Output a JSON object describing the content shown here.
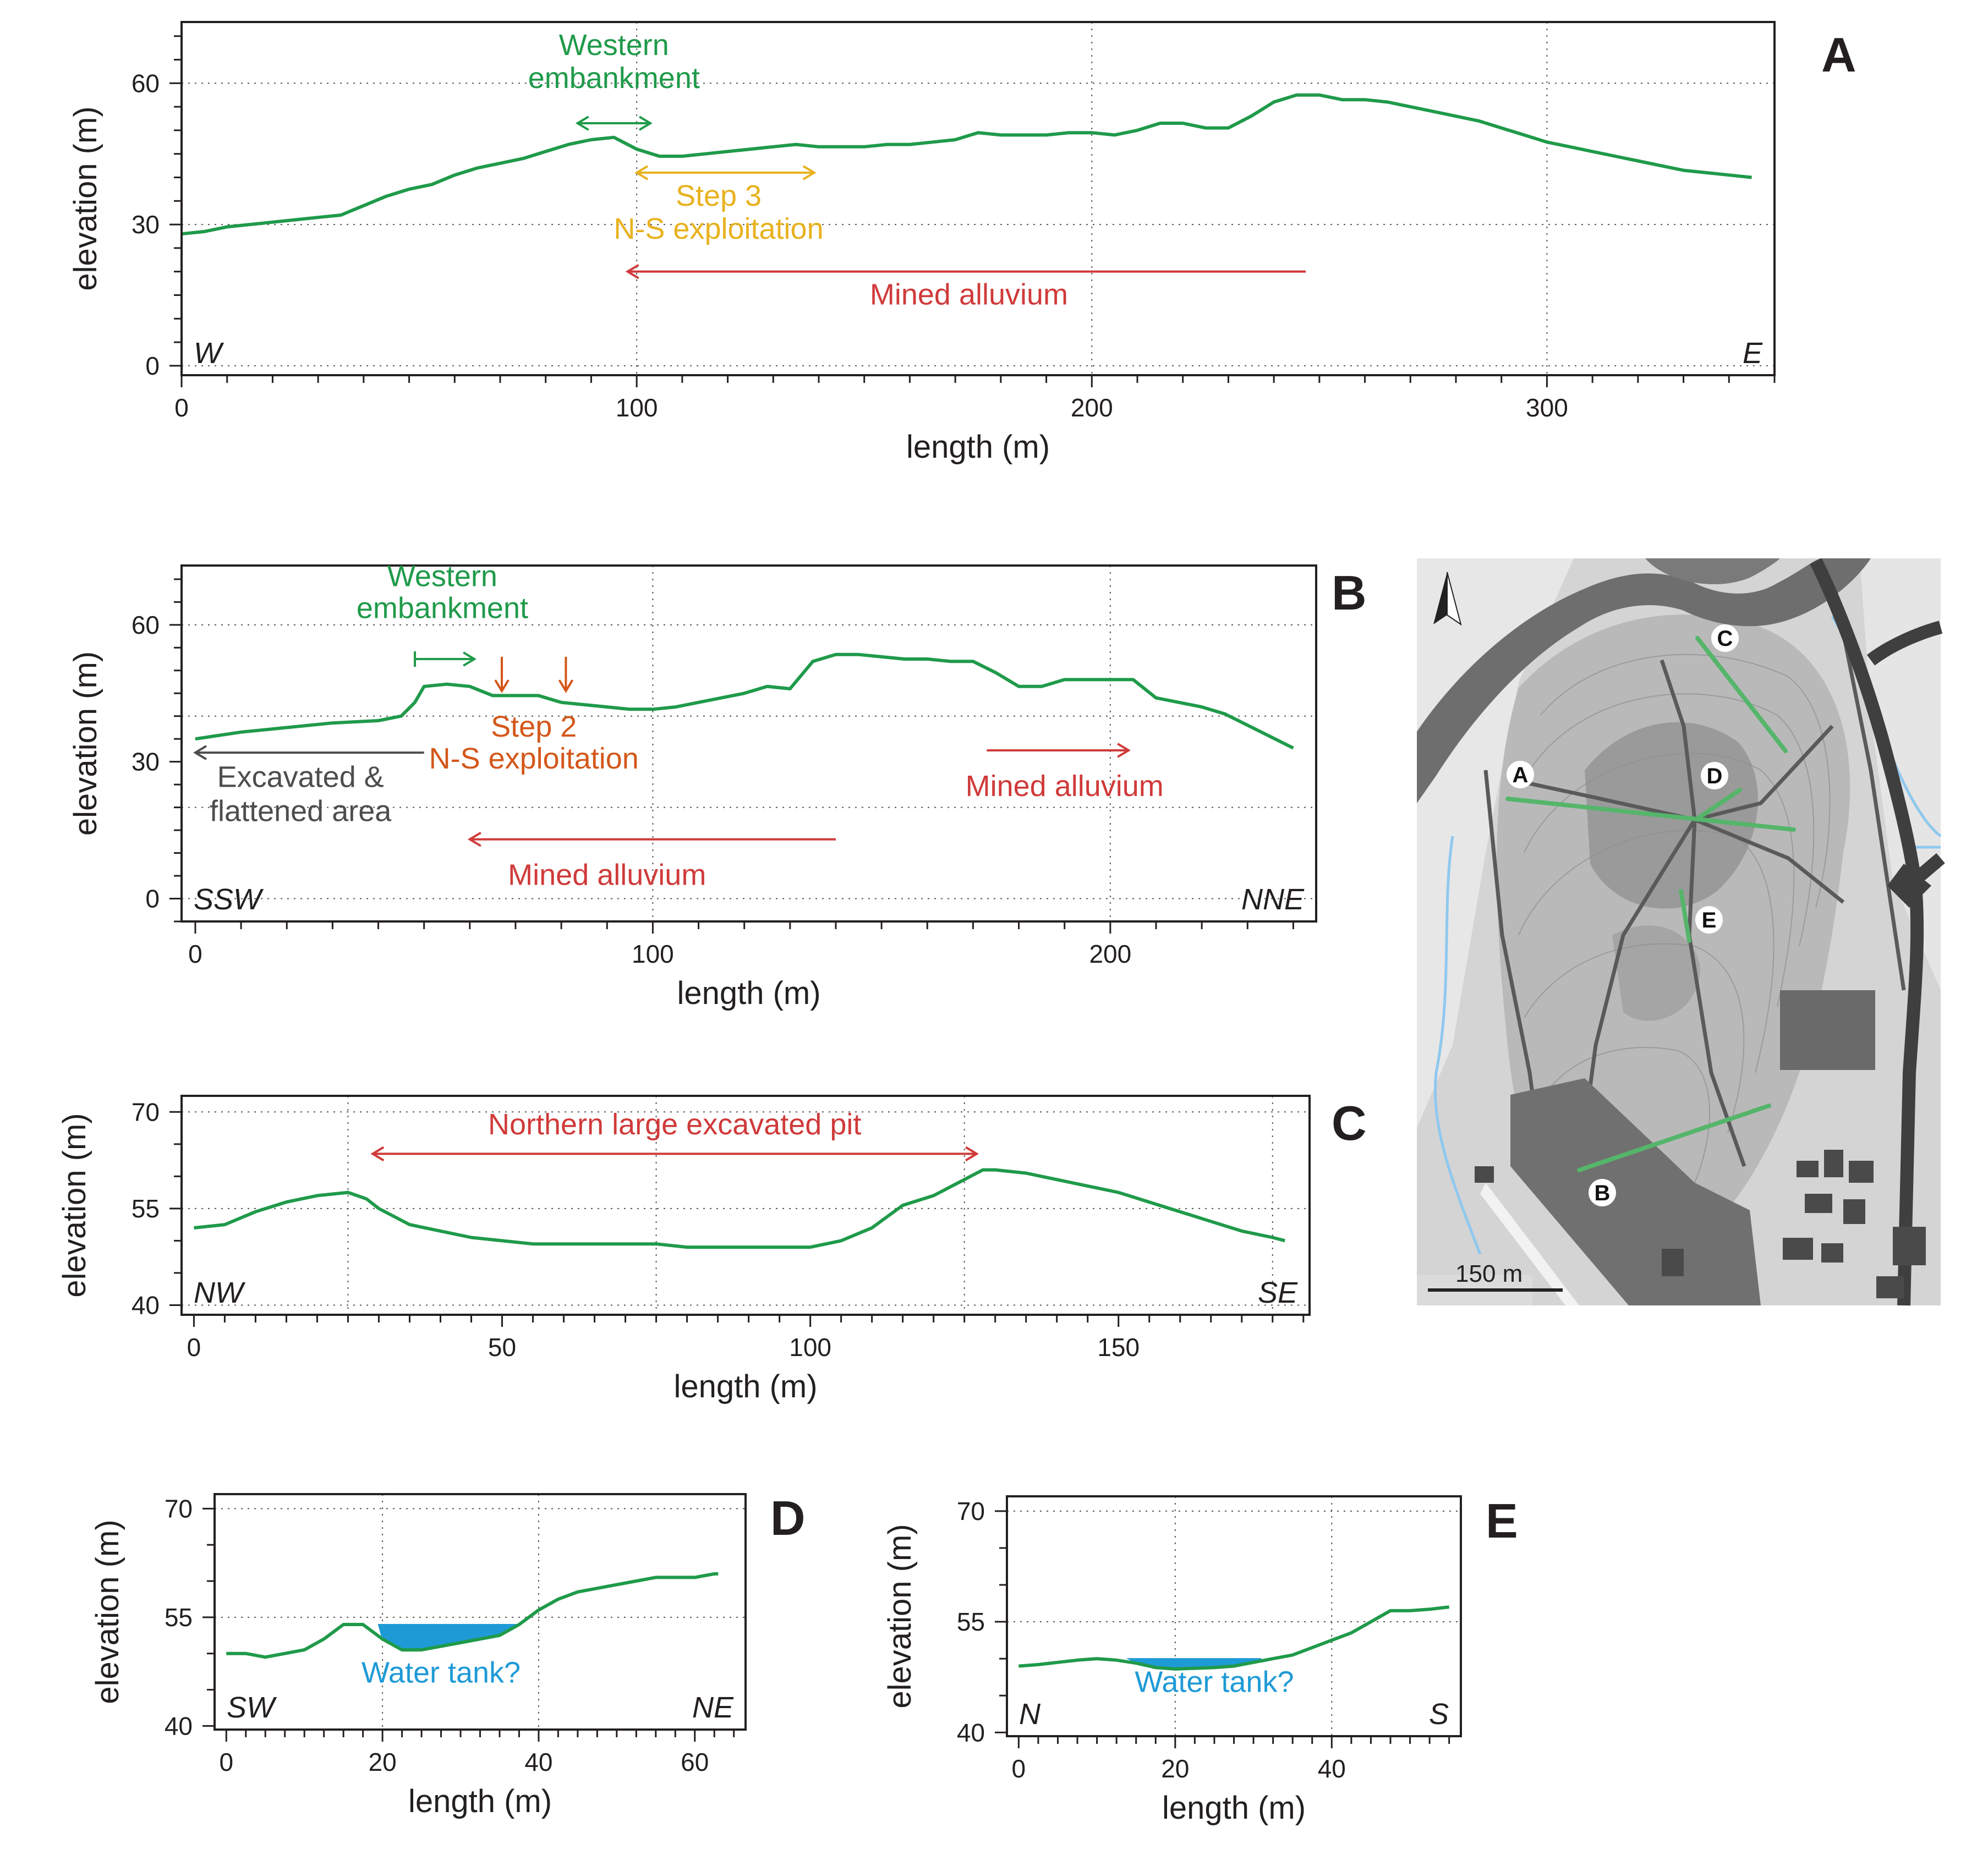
{
  "colors": {
    "profile": "#1f9a4a",
    "water": "#1e9ad6",
    "mined": "#d03a3a",
    "step3": "#e8b21e",
    "step2": "#d4571a",
    "excavated": "#4d4d4d",
    "axis": "#231f20",
    "grid": "#555555"
  },
  "chart_data": [
    {
      "id": "A",
      "type": "line",
      "panel_label": "A",
      "xlabel": "length (m)",
      "ylabel": "elevation (m)",
      "xlim": [
        0,
        350
      ],
      "ylim": [
        -2,
        73
      ],
      "xticks": [
        0,
        100,
        200,
        300
      ],
      "yticks": [
        0,
        30,
        60
      ],
      "grid_x": [
        100,
        200,
        300
      ],
      "grid_y": [
        0,
        30,
        60
      ],
      "minor_x": 10,
      "minor_y": 5,
      "dir_left": "W",
      "dir_right": "E",
      "series": [
        {
          "name": "profile A",
          "x": [
            0,
            5,
            10,
            15,
            20,
            25,
            30,
            35,
            40,
            45,
            50,
            55,
            60,
            65,
            70,
            75,
            80,
            85,
            90,
            95,
            100,
            105,
            110,
            115,
            120,
            125,
            130,
            135,
            140,
            145,
            150,
            155,
            160,
            165,
            170,
            175,
            180,
            185,
            190,
            195,
            200,
            205,
            210,
            215,
            220,
            225,
            230,
            235,
            240,
            245,
            250,
            255,
            260,
            265,
            270,
            275,
            280,
            285,
            290,
            295,
            300,
            305,
            310,
            315,
            320,
            325,
            330,
            335,
            340,
            345
          ],
          "y": [
            28,
            28.5,
            29.5,
            30,
            30.5,
            31,
            31.5,
            32,
            34,
            36,
            37.5,
            38.5,
            40.5,
            42,
            43,
            44,
            45.5,
            47,
            48,
            48.5,
            46,
            44.5,
            44.5,
            45,
            45.5,
            46,
            46.5,
            47,
            46.5,
            46.5,
            46.5,
            47,
            47,
            47.5,
            48,
            49.5,
            49,
            49,
            49,
            49.5,
            49.5,
            49,
            50,
            51.5,
            51.5,
            50.5,
            50.5,
            53,
            56,
            57.5,
            57.5,
            56.5,
            56.5,
            56,
            55,
            54,
            53,
            52,
            50.5,
            49,
            47.5,
            46.5,
            45.5,
            44.5,
            43.5,
            42.5,
            41.5,
            41,
            40.5,
            40
          ]
        }
      ],
      "annotations": [
        {
          "text": [
            "Western",
            "embankment"
          ],
          "color": "profile",
          "arrow": [
            87,
            103
          ],
          "arrow_y": 51.5,
          "style": "double",
          "text_x": 95,
          "text_y": [
            66,
            59
          ]
        },
        {
          "text": [
            "Step 3",
            "N-S exploitation"
          ],
          "color": "step3",
          "arrow": [
            100,
            139
          ],
          "arrow_y": 41,
          "style": "double",
          "text_x": 118,
          "text_y": [
            34,
            27
          ]
        },
        {
          "text": [
            "Mined alluvium"
          ],
          "color": "mined",
          "arrow": [
            247,
            98
          ],
          "arrow_y": 20,
          "style": "left",
          "text_x": 173,
          "text_y": [
            13
          ]
        }
      ]
    },
    {
      "id": "B",
      "type": "line",
      "panel_label": "B",
      "xlabel": "length (m)",
      "ylabel": "elevation (m)",
      "xlim": [
        -3,
        245
      ],
      "ylim": [
        -5,
        73
      ],
      "xticks": [
        0,
        100,
        200
      ],
      "yticks": [
        0,
        30,
        60
      ],
      "grid_x": [
        100,
        200
      ],
      "grid_y": [
        0,
        20,
        40,
        60
      ],
      "minor_x": 10,
      "minor_y": 5,
      "dir_left": "SSW",
      "dir_right": "NNE",
      "series": [
        {
          "name": "profile B",
          "x": [
            0,
            10,
            20,
            30,
            40,
            45,
            48,
            50,
            55,
            60,
            65,
            70,
            75,
            80,
            85,
            90,
            95,
            100,
            105,
            110,
            115,
            120,
            125,
            130,
            135,
            140,
            145,
            150,
            155,
            160,
            165,
            170,
            175,
            180,
            185,
            190,
            195,
            200,
            205,
            210,
            215,
            220,
            225,
            230,
            235,
            240
          ],
          "y": [
            35,
            36.5,
            37.5,
            38.5,
            39,
            40,
            43,
            46.5,
            47,
            46.5,
            44.5,
            44.5,
            44.5,
            43,
            42.5,
            42,
            41.5,
            41.5,
            42,
            43,
            44,
            45,
            46.5,
            46,
            52,
            53.5,
            53.5,
            53,
            52.5,
            52.5,
            52,
            52,
            49.5,
            46.5,
            46.5,
            48,
            48,
            48,
            48,
            44,
            43,
            42,
            40.5,
            38,
            35.5,
            33
          ]
        }
      ],
      "annotations": [
        {
          "text": [
            "Western",
            "embankment"
          ],
          "color": "profile",
          "arrow": [
            48,
            61
          ],
          "arrow_y": 52.5,
          "style": "right_bar",
          "text_x": 54,
          "text_y": [
            68.5,
            61.5
          ]
        },
        {
          "text": [
            "Step 2",
            "N-S exploitation"
          ],
          "color": "step2",
          "arrow_points": [
            67,
            81
          ],
          "arrow_top": 53,
          "arrow_bottom": 45.5,
          "style": "down",
          "text_x": 74,
          "text_y": [
            35.5,
            28.5
          ]
        },
        {
          "text": [
            "Excavated &",
            "flattened area"
          ],
          "color": "excavated",
          "arrow": [
            50,
            0
          ],
          "arrow_y": 32,
          "style": "left",
          "text_x": 23,
          "text_y": [
            24.5,
            17
          ]
        },
        {
          "text": [
            "Mined alluvium"
          ],
          "color": "mined",
          "arrow": [
            173,
            204
          ],
          "arrow_y": 32.5,
          "style": "right",
          "text_x": 190,
          "text_y": [
            22.5
          ]
        },
        {
          "text": [
            "Mined alluvium"
          ],
          "color": "mined",
          "arrow": [
            140,
            60
          ],
          "arrow_y": 13,
          "style": "left",
          "text_x": 90,
          "text_y": [
            3
          ]
        }
      ]
    },
    {
      "id": "C",
      "type": "line",
      "panel_label": "C",
      "xlabel": "length (m)",
      "ylabel": "elevation (m)",
      "xlim": [
        -2,
        181
      ],
      "ylim": [
        38.5,
        72.5
      ],
      "xticks": [
        0,
        50,
        100,
        150
      ],
      "yticks": [
        40,
        55,
        70
      ],
      "grid_x": [
        25,
        75,
        125,
        175
      ],
      "grid_y": [
        40,
        55,
        70
      ],
      "minor_x": 5,
      "minor_y": 5,
      "dir_left": "NW",
      "dir_right": "SE",
      "series": [
        {
          "name": "profile C",
          "x": [
            0,
            5,
            10,
            15,
            20,
            25,
            28,
            30,
            35,
            40,
            45,
            50,
            55,
            60,
            65,
            70,
            75,
            80,
            85,
            90,
            95,
            100,
            105,
            110,
            115,
            120,
            125,
            128,
            130,
            135,
            140,
            145,
            150,
            155,
            160,
            165,
            170,
            175,
            177
          ],
          "y": [
            52,
            52.5,
            54.5,
            56,
            57,
            57.5,
            56.5,
            55,
            52.5,
            51.5,
            50.5,
            50,
            49.5,
            49.5,
            49.5,
            49.5,
            49.5,
            49,
            49,
            49,
            49,
            49,
            50,
            52,
            55.5,
            57,
            59.5,
            61,
            61,
            60.5,
            59.5,
            58.5,
            57.5,
            56,
            54.5,
            53,
            51.5,
            50.5,
            50
          ]
        }
      ],
      "annotations": [
        {
          "text": [
            "Northern large excavated pit"
          ],
          "color": "mined",
          "arrow": [
            29,
            127
          ],
          "arrow_y": 63.5,
          "style": "double",
          "text_x": 78,
          "text_y": [
            66.5
          ]
        }
      ]
    },
    {
      "id": "D",
      "type": "line",
      "panel_label": "D",
      "xlabel": "length (m)",
      "ylabel": "elevation (m)",
      "xlim": [
        -1.5,
        66.5
      ],
      "ylim": [
        39.5,
        72
      ],
      "xticks": [
        0,
        20,
        40,
        60
      ],
      "yticks": [
        40,
        55,
        70
      ],
      "grid_x": [
        20,
        40
      ],
      "grid_y": [
        55,
        70
      ],
      "minor_x": 2.5,
      "minor_y": 5,
      "dir_left": "SW",
      "dir_right": "NE",
      "series": [
        {
          "name": "profile D",
          "x": [
            0,
            2.5,
            5,
            7.5,
            10,
            12.5,
            15,
            17.5,
            20,
            22.5,
            25,
            27.5,
            30,
            32.5,
            35,
            37.5,
            40,
            42.5,
            45,
            47.5,
            50,
            52.5,
            55,
            57.5,
            60,
            62.5,
            63
          ],
          "y": [
            50,
            50,
            49.5,
            50,
            50.5,
            52,
            54,
            54,
            52,
            50.5,
            50.5,
            51,
            51.5,
            52,
            52.5,
            54,
            56,
            57.5,
            58.5,
            59,
            59.5,
            60,
            60.5,
            60.5,
            60.5,
            61,
            61
          ]
        }
      ],
      "water": {
        "x_start": 19.5,
        "x_end": 37,
        "level": 54
      },
      "annotations": [
        {
          "text": [
            "Water tank?"
          ],
          "color": "water",
          "text_x": 27.5,
          "text_y": [
            46
          ]
        }
      ]
    },
    {
      "id": "E",
      "type": "line",
      "panel_label": "E",
      "xlabel": "length (m)",
      "ylabel": "elevation (m)",
      "xlim": [
        -1.5,
        56.5
      ],
      "ylim": [
        39.5,
        72
      ],
      "xticks": [
        0,
        20,
        40
      ],
      "yticks": [
        40,
        55,
        70
      ],
      "grid_x": [
        20,
        40
      ],
      "grid_y": [
        55,
        70
      ],
      "minor_x": 2.5,
      "minor_y": 5,
      "dir_left": "N",
      "dir_right": "S",
      "series": [
        {
          "name": "profile E",
          "x": [
            0,
            2.5,
            5,
            7.5,
            10,
            12.5,
            15,
            17.5,
            20,
            22.5,
            25,
            27.5,
            30,
            32.5,
            35,
            37.5,
            40,
            42.5,
            45,
            47.5,
            50,
            52.5,
            55
          ],
          "y": [
            49,
            49.2,
            49.5,
            49.8,
            50,
            49.8,
            49.4,
            48.8,
            48.6,
            48.7,
            48.8,
            49,
            49.5,
            50,
            50.5,
            51.5,
            52.5,
            53.5,
            55,
            56.5,
            56.5,
            56.7,
            57
          ]
        }
      ],
      "water": {
        "x_start": 14,
        "x_end": 31,
        "level": 50
      },
      "annotations": [
        {
          "text": [
            "Water tank?"
          ],
          "color": "water",
          "text_x": 25,
          "text_y": [
            45.5
          ]
        }
      ]
    }
  ],
  "map": {
    "labels": [
      "A",
      "B",
      "C",
      "D",
      "E"
    ],
    "scale_label": "150 m"
  }
}
